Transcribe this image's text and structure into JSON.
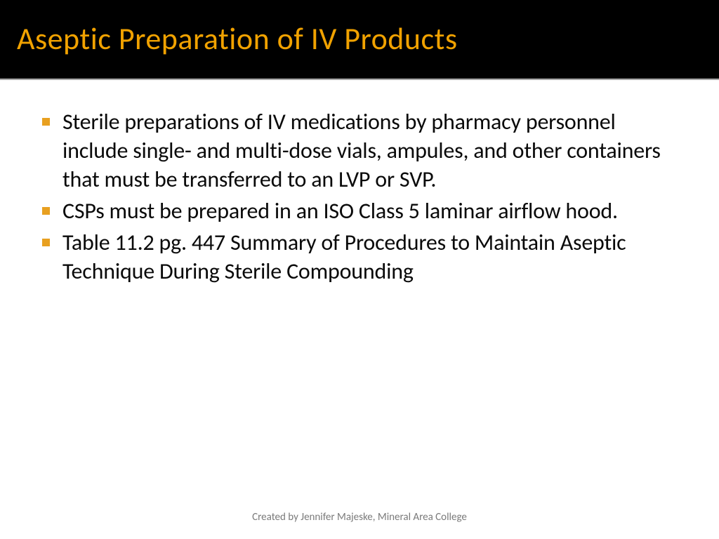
{
  "slide": {
    "title": "Aseptic Preparation of IV Products",
    "title_color": "#f1a200",
    "title_bg": "#000000",
    "title_fontsize": 44,
    "bullets": [
      "Sterile preparations of IV medications by pharmacy personnel include single- and multi-dose vials, ampules, and other containers that must be transferred to an LVP or SVP.",
      "CSPs must be prepared in an ISO Class 5 laminar airflow hood.",
      "Table 11.2 pg. 447 Summary of Procedures to Maintain Aseptic Technique During Sterile Compounding"
    ],
    "bullet_marker_color": "#e8a020",
    "body_fontsize": 32,
    "body_color": "#0a0a0a",
    "footer": "Created by Jennifer Majeske, Mineral Area College",
    "footer_color": "#7a7a7a",
    "footer_fontsize": 15,
    "background_color": "#ffffff"
  }
}
